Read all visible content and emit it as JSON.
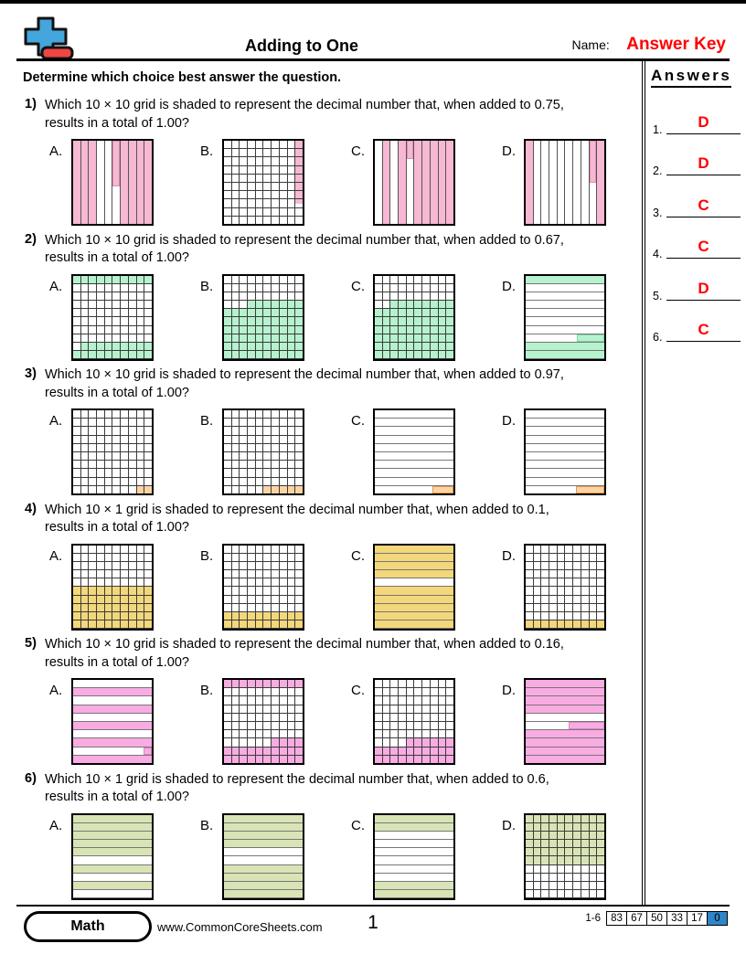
{
  "header": {
    "title": "Adding to One",
    "name_label": "Name:",
    "name_value": "Answer Key",
    "instruction": "Determine which choice best answer the question.",
    "logo_icon": "plus-minus-icon",
    "logo_blue": "#45a5dd",
    "logo_red": "#ee4642"
  },
  "answers_panel": {
    "title": "Answers",
    "items": [
      {
        "num": "1.",
        "letter": "D"
      },
      {
        "num": "2.",
        "letter": "D"
      },
      {
        "num": "3.",
        "letter": "C"
      },
      {
        "num": "4.",
        "letter": "C"
      },
      {
        "num": "5.",
        "letter": "D"
      },
      {
        "num": "6.",
        "letter": "C"
      }
    ],
    "accent_red": "#ff0000"
  },
  "questions": [
    {
      "number": "1)",
      "line1": "Which 10 × 10 grid is shaded to represent the decimal number that, when added to 0.75,",
      "line2": "results in a total of 1.00?",
      "color": "#f6b8d2",
      "edge": "#df8fb4",
      "choices": [
        {
          "label": "A.",
          "grid": {
            "type": "columns",
            "fills": [
              1,
              1,
              1,
              0,
              0,
              0.55,
              1,
              1,
              1,
              1
            ]
          }
        },
        {
          "label": "B.",
          "grid": {
            "type": "cells",
            "cells": [
              "0000000001",
              "0000000001",
              "0000000001",
              "0000000001",
              "0000000001",
              "0000000001",
              "0000000001",
              "000000000h",
              "0000000000",
              "0000000000"
            ]
          }
        },
        {
          "label": "C.",
          "grid": {
            "type": "columns",
            "fills": [
              0,
              1,
              0,
              1,
              0.22,
              1,
              1,
              1,
              1,
              1
            ]
          }
        },
        {
          "label": "D.",
          "grid": {
            "type": "columns",
            "fills": [
              1,
              0,
              0,
              0,
              0,
              0,
              0,
              0,
              0.5,
              1
            ]
          }
        }
      ]
    },
    {
      "number": "2)",
      "line1": "Which 10 × 10 grid is shaded to represent the decimal number that, when added to 0.67,",
      "line2": "results in a total of 1.00?",
      "color": "#b6f2ce",
      "edge": "#7fd8a4",
      "choices": [
        {
          "label": "A.",
          "grid": {
            "type": "cells",
            "cells": [
              "1111111111",
              "0000000000",
              "0000000000",
              "0000000000",
              "0000000000",
              "0000000000",
              "0000000000",
              "0000000000",
              "0111111111",
              "1111111111"
            ]
          }
        },
        {
          "label": "B.",
          "grid": {
            "type": "cells",
            "cells": [
              "0000000000",
              "0000000000",
              "0000000000",
              "0001111111",
              "1111111111",
              "1111111111",
              "1111111111",
              "1111111111",
              "1111111111",
              "1111111111"
            ]
          }
        },
        {
          "label": "C.",
          "grid": {
            "type": "cells",
            "cells": [
              "0000000000",
              "0000000000",
              "0000000000",
              "0011111111",
              "1111111111",
              "1111111111",
              "1111111111",
              "1111111111",
              "1111111111",
              "1111111111"
            ]
          }
        },
        {
          "label": "D.",
          "grid": {
            "type": "rows",
            "fills": [
              1,
              0,
              0,
              0,
              0,
              0,
              0,
              0.35,
              1,
              1
            ]
          }
        }
      ]
    },
    {
      "number": "3)",
      "line1": "Which 10 × 10 grid is shaded to represent the decimal number that, when added to 0.97,",
      "line2": "results in a total of 1.00?",
      "color": "#fcd4a4",
      "edge": "#e09a50",
      "choices": [
        {
          "label": "A.",
          "grid": {
            "type": "cells",
            "cells": [
              "0000000000",
              "0000000000",
              "0000000000",
              "0000000000",
              "0000000000",
              "0000000000",
              "0000000000",
              "0000000000",
              "0000000000",
              "0000000011"
            ]
          }
        },
        {
          "label": "B.",
          "grid": {
            "type": "cells",
            "cells": [
              "0000000000",
              "0000000000",
              "0000000000",
              "0000000000",
              "0000000000",
              "0000000000",
              "0000000000",
              "0000000000",
              "0000000000",
              "0000011111"
            ]
          }
        },
        {
          "label": "C.",
          "grid": {
            "type": "rows",
            "fills": [
              0,
              0,
              0,
              0,
              0,
              0,
              0,
              0,
              0,
              0.27
            ]
          }
        },
        {
          "label": "D.",
          "grid": {
            "type": "rows",
            "fills": [
              0,
              0,
              0,
              0,
              0,
              0,
              0,
              0,
              0,
              0.36
            ]
          }
        }
      ]
    },
    {
      "number": "4)",
      "line1": "Which 10 × 1 grid is shaded to represent the decimal number that, when added to 0.1,",
      "line2": "results in a total of 1.00?",
      "color": "#f3d77b",
      "edge": "#c8a43e",
      "choices": [
        {
          "label": "A.",
          "grid": {
            "type": "cells",
            "cells": [
              "0000000000",
              "0000000000",
              "0000000000",
              "0000000000",
              "0000000000",
              "1111111111",
              "1111111111",
              "1111111111",
              "1111111111",
              "1111111111"
            ]
          }
        },
        {
          "label": "B.",
          "grid": {
            "type": "cells",
            "cells": [
              "0000000000",
              "0000000000",
              "0000000000",
              "0000000000",
              "0000000000",
              "0000000000",
              "0000000000",
              "0000000000",
              "1111111111",
              "1111111111"
            ]
          }
        },
        {
          "label": "C.",
          "grid": {
            "type": "rows",
            "fills": [
              1,
              1,
              1,
              1,
              0,
              1,
              1,
              1,
              1,
              1
            ]
          }
        },
        {
          "label": "D.",
          "grid": {
            "type": "cells",
            "cells": [
              "0000000000",
              "0000000000",
              "0000000000",
              "0000000000",
              "0000000000",
              "0000000000",
              "0000000000",
              "0000000000",
              "0000000000",
              "1111111111"
            ]
          }
        }
      ]
    },
    {
      "number": "5)",
      "line1": "Which 10 × 10 grid is shaded to represent the decimal number that, when added to 0.16,",
      "line2": "results in a total of 1.00?",
      "color": "#f8ace2",
      "edge": "#dc85c4",
      "choices": [
        {
          "label": "A.",
          "grid": {
            "type": "rows",
            "fills": [
              0,
              1,
              0,
              1,
              0,
              1,
              0,
              1,
              0.1,
              1
            ]
          }
        },
        {
          "label": "B.",
          "grid": {
            "type": "cells",
            "cells": [
              "1111111111",
              "0000000000",
              "0000000000",
              "0000000000",
              "0000000000",
              "0000000000",
              "0000000000",
              "0000001111",
              "1111111111",
              "1111111111"
            ]
          }
        },
        {
          "label": "C.",
          "grid": {
            "type": "cells",
            "cells": [
              "0000000000",
              "0000000000",
              "0000000000",
              "0000000000",
              "0000000000",
              "0000000000",
              "0000000000",
              "0000111111",
              "1111111111",
              "1111111111"
            ]
          }
        },
        {
          "label": "D.",
          "grid": {
            "type": "rows",
            "fills": [
              1,
              1,
              1,
              1,
              0,
              0.45,
              1,
              1,
              1,
              1
            ]
          }
        }
      ]
    },
    {
      "number": "6)",
      "line1": "Which 10 × 1 grid is shaded to represent the decimal number that, when added to 0.6,",
      "line2": "results in a total of 1.00?",
      "color": "#d9e4b6",
      "edge": "#a3b377",
      "choices": [
        {
          "label": "A.",
          "grid": {
            "type": "rows",
            "fills": [
              1,
              1,
              1,
              1,
              1,
              0,
              1,
              0,
              1,
              0
            ]
          }
        },
        {
          "label": "B.",
          "grid": {
            "type": "rows",
            "fills": [
              1,
              1,
              1,
              1,
              0,
              0,
              1,
              1,
              1,
              1
            ]
          }
        },
        {
          "label": "C.",
          "grid": {
            "type": "rows",
            "fills": [
              1,
              1,
              0,
              0,
              0,
              0,
              0,
              0,
              1,
              1
            ]
          }
        },
        {
          "label": "D.",
          "grid": {
            "type": "cells",
            "cells": [
              "1111111111",
              "1111111111",
              "1111111111",
              "1111111111",
              "1111111111",
              "1111111111",
              "0000000000",
              "0000000000",
              "0000000000",
              "0000000000"
            ]
          }
        }
      ]
    }
  ],
  "footer": {
    "subject": "Math",
    "website": "www.CommonCoreSheets.com",
    "page_number": "1",
    "score_label": "1-6",
    "score_values": [
      "83",
      "67",
      "50",
      "33",
      "17",
      "0"
    ],
    "score_final_blue": "#2e86c8"
  }
}
